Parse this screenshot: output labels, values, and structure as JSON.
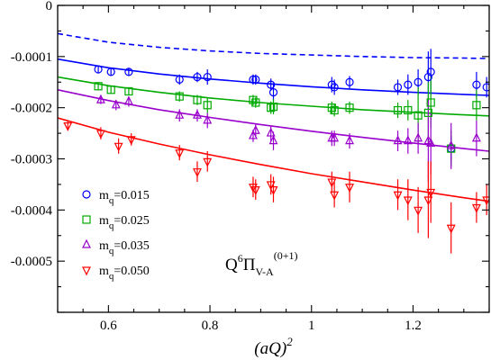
{
  "chart_data": {
    "type": "scatter",
    "title": "",
    "xlabel": "(aQ)",
    "xlabel_sup": "2",
    "ylabel": "",
    "xlim": [
      0.5,
      1.35
    ],
    "ylim": [
      -0.0006,
      0
    ],
    "x_ticks": [
      0.6,
      0.8,
      1,
      1.2
    ],
    "x_tick_labels": [
      "0.6",
      "0.8",
      "1",
      "1.2"
    ],
    "y_ticks": [
      0,
      -0.0001,
      -0.0002,
      -0.0003,
      -0.0004,
      -0.0005
    ],
    "y_tick_labels": [
      "0",
      "-0.0001",
      "-0.0002",
      "-0.0003",
      "-0.0004",
      "-0.0005"
    ],
    "grid": false,
    "legend_position": "bottom-left",
    "annotation": {
      "base": "Q",
      "sup1": "6",
      "pi": "Π",
      "sub": "V-A",
      "sup2": "(0+1)"
    },
    "series": [
      {
        "name": "m",
        "name_sub": "q",
        "name_rest": "=0.015",
        "color": "#0000ff",
        "marker": "circle",
        "x": [
          0.58,
          0.605,
          0.64,
          0.74,
          0.775,
          0.795,
          0.885,
          0.89,
          0.92,
          0.925,
          1.04,
          1.045,
          1.075,
          1.17,
          1.19,
          1.21,
          1.23,
          1.235,
          1.275,
          1.325,
          1.345
        ],
        "y": [
          -0.000125,
          -0.00013,
          -0.00013,
          -0.000145,
          -0.00014,
          -0.00014,
          -0.000145,
          -0.000145,
          -0.000155,
          -0.00017,
          -0.000155,
          -0.00016,
          -0.00015,
          -0.00016,
          -0.000155,
          -0.00015,
          -0.00014,
          -0.00013,
          -0.00028,
          -0.000155,
          -0.00016
        ],
        "err": [
          8e-06,
          8e-06,
          8e-06,
          1e-05,
          1e-05,
          1.5e-05,
          1e-05,
          1e-05,
          1.2e-05,
          1.8e-05,
          1.5e-05,
          1.5e-05,
          1.2e-05,
          1.5e-05,
          2e-05,
          2.5e-05,
          5e-05,
          4.5e-05,
          2.5e-05,
          2.5e-05,
          2e-05
        ]
      },
      {
        "name": "m",
        "name_sub": "q",
        "name_rest": "=0.025",
        "color": "#00aa00",
        "marker": "square",
        "x": [
          0.58,
          0.605,
          0.64,
          0.74,
          0.775,
          0.795,
          0.885,
          0.89,
          0.92,
          0.925,
          1.04,
          1.045,
          1.075,
          1.17,
          1.19,
          1.21,
          1.23,
          1.235,
          1.275,
          1.325
        ],
        "y": [
          -0.000158,
          -0.000165,
          -0.000168,
          -0.000178,
          -0.000185,
          -0.000195,
          -0.000185,
          -0.00019,
          -0.0002,
          -0.000198,
          -0.0002,
          -0.000205,
          -0.0002,
          -0.000205,
          -0.000205,
          -0.000215,
          -0.00021,
          -0.00019,
          -0.00028,
          -0.000195
        ],
        "err": [
          8e-06,
          8e-06,
          8e-06,
          1e-05,
          1e-05,
          1.5e-05,
          1e-05,
          1e-05,
          1.2e-05,
          1.5e-05,
          1.2e-05,
          1.2e-05,
          1.2e-05,
          1.5e-05,
          2e-05,
          5.5e-05,
          6e-05,
          5e-05,
          3.5e-05,
          3e-05
        ]
      },
      {
        "name": "m",
        "name_sub": "q",
        "name_rest": "=0.035",
        "color": "#9900cc",
        "marker": "triangle-up",
        "x": [
          0.585,
          0.615,
          0.64,
          0.74,
          0.775,
          0.795,
          0.885,
          0.89,
          0.92,
          0.925,
          1.04,
          1.045,
          1.075,
          1.17,
          1.19,
          1.21,
          1.23,
          1.235,
          1.275,
          1.325
        ],
        "y": [
          -0.000185,
          -0.000195,
          -0.000188,
          -0.000215,
          -0.000215,
          -0.000225,
          -0.000255,
          -0.000245,
          -0.00025,
          -0.000265,
          -0.00026,
          -0.00026,
          -0.000265,
          -0.000265,
          -0.000265,
          -0.00026,
          -0.000265,
          -0.00027,
          -0.000275,
          -0.00026
        ],
        "err": [
          8e-06,
          1e-05,
          1e-05,
          1.2e-05,
          1.2e-05,
          1.5e-05,
          1.2e-05,
          1.2e-05,
          1.5e-05,
          1.8e-05,
          1.5e-05,
          1.5e-05,
          1.5e-05,
          2e-05,
          2.5e-05,
          3e-05,
          8e-05,
          6e-05,
          4.5e-05,
          3.5e-05
        ]
      },
      {
        "name": "m",
        "name_sub": "q",
        "name_rest": "=0.050",
        "color": "#ff0000",
        "marker": "triangle-down",
        "x": [
          0.52,
          0.585,
          0.62,
          0.645,
          0.74,
          0.775,
          0.795,
          0.885,
          0.89,
          0.92,
          0.925,
          1.04,
          1.045,
          1.075,
          1.17,
          1.19,
          1.21,
          1.23,
          1.235,
          1.275,
          1.325,
          1.345
        ],
        "y": [
          -0.000235,
          -0.00025,
          -0.000275,
          -0.000262,
          -0.000288,
          -0.000325,
          -0.000305,
          -0.000355,
          -0.00036,
          -0.00035,
          -0.00036,
          -0.000345,
          -0.00037,
          -0.000355,
          -0.00037,
          -0.00038,
          -0.0004,
          -0.00038,
          -0.000365,
          -0.000435,
          -0.000395,
          -0.00038
        ],
        "err": [
          8e-06,
          1.2e-05,
          1.5e-05,
          1.2e-05,
          1.5e-05,
          2e-05,
          2e-05,
          2e-05,
          2e-05,
          2e-05,
          2.5e-05,
          2e-05,
          2.5e-05,
          3e-05,
          3e-05,
          4e-05,
          4.5e-05,
          7.5e-05,
          6e-05,
          5e-05,
          3e-05,
          3e-05
        ]
      }
    ],
    "fit_lines": [
      {
        "color": "#0000ff",
        "style": "solid",
        "x": [
          0.5,
          0.6,
          0.7,
          0.8,
          0.9,
          1.0,
          1.1,
          1.2,
          1.3,
          1.35
        ],
        "y": [
          -0.000105,
          -0.000122,
          -0.000134,
          -0.000144,
          -0.000152,
          -0.000159,
          -0.000165,
          -0.00017,
          -0.000174,
          -0.000176
        ]
      },
      {
        "color": "#00aa00",
        "style": "solid",
        "x": [
          0.5,
          0.6,
          0.7,
          0.8,
          0.9,
          1.0,
          1.1,
          1.2,
          1.3,
          1.35
        ],
        "y": [
          -0.00014,
          -0.000157,
          -0.00017,
          -0.000181,
          -0.00019,
          -0.000197,
          -0.000204,
          -0.000209,
          -0.000214,
          -0.000216
        ]
      },
      {
        "color": "#9900cc",
        "style": "solid",
        "x": [
          0.5,
          0.6,
          0.7,
          0.8,
          0.9,
          1.0,
          1.1,
          1.2,
          1.3,
          1.35
        ],
        "y": [
          -0.000165,
          -0.000186,
          -0.000204,
          -0.000219,
          -0.000233,
          -0.000246,
          -0.000258,
          -0.000269,
          -0.00028,
          -0.000285
        ]
      },
      {
        "color": "#ff0000",
        "style": "solid",
        "x": [
          0.5,
          0.6,
          0.7,
          0.8,
          0.9,
          1.0,
          1.1,
          1.2,
          1.3,
          1.35
        ],
        "y": [
          -0.00022,
          -0.000248,
          -0.000271,
          -0.000292,
          -0.000311,
          -0.000329,
          -0.000345,
          -0.000361,
          -0.000376,
          -0.000383
        ]
      },
      {
        "color": "#0000ff",
        "style": "dashed",
        "x": [
          0.5,
          0.6,
          0.7,
          0.8,
          0.9,
          1.0,
          1.1,
          1.2,
          1.3,
          1.35
        ],
        "y": [
          -5.5e-05,
          -7.2e-05,
          -8.2e-05,
          -8.9e-05,
          -9.4e-05,
          -9.7e-05,
          -0.0001,
          -0.000102,
          -0.000103,
          -0.000104
        ]
      }
    ]
  }
}
